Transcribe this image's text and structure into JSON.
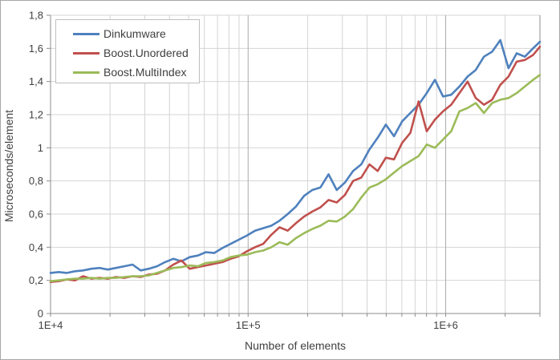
{
  "window": {
    "background": "#ffffff",
    "border_color": "#a6a6a6"
  },
  "chart_data": {
    "type": "line",
    "title": "",
    "xlabel": "Number of elements",
    "ylabel": "Microseconds/element",
    "x_scale": "log",
    "x_range": [
      10000,
      3000000
    ],
    "y_range": [
      0,
      1.8
    ],
    "grid": true,
    "legend_position": "top-left",
    "style": {
      "minor_grid_color": "#d4d4d4",
      "major_grid_color": "#ababab",
      "axis_color": "#8c8c8c",
      "tick_label_color": "#404040"
    },
    "y_ticks": [
      {
        "value": 0,
        "label": "0"
      },
      {
        "value": 0.2,
        "label": "0,2"
      },
      {
        "value": 0.4,
        "label": "0,4"
      },
      {
        "value": 0.6,
        "label": "0,6"
      },
      {
        "value": 0.8,
        "label": "0,8"
      },
      {
        "value": 1.0,
        "label": "1"
      },
      {
        "value": 1.2,
        "label": "1,2"
      },
      {
        "value": 1.4,
        "label": "1,4"
      },
      {
        "value": 1.6,
        "label": "1,6"
      },
      {
        "value": 1.8,
        "label": "1,8"
      }
    ],
    "x_major_ticks": [
      {
        "value": 10000,
        "label": "1E+4"
      },
      {
        "value": 100000,
        "label": "1E+5"
      },
      {
        "value": 1000000,
        "label": "1E+6"
      }
    ],
    "x": [
      10000,
      11000,
      12100,
      13300,
      14600,
      16100,
      17700,
      19500,
      21400,
      23600,
      26000,
      28600,
      31400,
      34600,
      38000,
      41800,
      46000,
      50600,
      55700,
      61200,
      67300,
      74100,
      81500,
      89600,
      98500,
      108400,
      119200,
      131100,
      144200,
      158600,
      174500,
      191900,
      211100,
      232200,
      255400,
      281000,
      309100,
      340000,
      374000,
      411400,
      452500,
      497800,
      547500,
      602300,
      662500,
      728800,
      801600,
      881800,
      970000,
      1067000,
      1173600,
      1291000,
      1420000,
      1562000,
      1718300,
      1890200,
      2079200,
      2287100,
      2515900,
      2767400,
      3000000
    ],
    "series": [
      {
        "name": "Dinkumware",
        "color": "#4F81BD",
        "values": [
          0.245,
          0.25,
          0.245,
          0.255,
          0.26,
          0.27,
          0.275,
          0.265,
          0.275,
          0.285,
          0.295,
          0.26,
          0.27,
          0.285,
          0.31,
          0.33,
          0.315,
          0.34,
          0.35,
          0.37,
          0.365,
          0.395,
          0.42,
          0.445,
          0.47,
          0.5,
          0.515,
          0.53,
          0.56,
          0.6,
          0.645,
          0.71,
          0.745,
          0.76,
          0.84,
          0.745,
          0.79,
          0.86,
          0.9,
          0.99,
          1.06,
          1.14,
          1.07,
          1.16,
          1.21,
          1.26,
          1.33,
          1.41,
          1.31,
          1.32,
          1.37,
          1.43,
          1.47,
          1.55,
          1.58,
          1.65,
          1.48,
          1.57,
          1.55,
          1.6,
          1.64
        ]
      },
      {
        "name": "Boost.Unordered",
        "color": "#C0504D",
        "values": [
          0.19,
          0.195,
          0.205,
          0.2,
          0.225,
          0.21,
          0.215,
          0.21,
          0.22,
          0.215,
          0.225,
          0.22,
          0.235,
          0.24,
          0.26,
          0.295,
          0.32,
          0.27,
          0.28,
          0.29,
          0.3,
          0.31,
          0.33,
          0.345,
          0.375,
          0.4,
          0.42,
          0.475,
          0.52,
          0.5,
          0.545,
          0.585,
          0.615,
          0.64,
          0.685,
          0.67,
          0.715,
          0.8,
          0.82,
          0.9,
          0.86,
          0.94,
          0.93,
          1.03,
          1.09,
          1.28,
          1.1,
          1.17,
          1.22,
          1.26,
          1.33,
          1.4,
          1.3,
          1.26,
          1.29,
          1.38,
          1.43,
          1.52,
          1.53,
          1.56,
          1.61
        ]
      },
      {
        "name": "Boost.MultiIndex",
        "color": "#9BBB59",
        "values": [
          0.195,
          0.2,
          0.205,
          0.21,
          0.21,
          0.215,
          0.21,
          0.215,
          0.215,
          0.22,
          0.225,
          0.225,
          0.23,
          0.245,
          0.26,
          0.275,
          0.28,
          0.29,
          0.285,
          0.305,
          0.31,
          0.32,
          0.34,
          0.35,
          0.355,
          0.37,
          0.38,
          0.4,
          0.43,
          0.415,
          0.455,
          0.485,
          0.51,
          0.53,
          0.56,
          0.555,
          0.585,
          0.63,
          0.7,
          0.76,
          0.78,
          0.81,
          0.85,
          0.89,
          0.92,
          0.95,
          1.02,
          1.0,
          1.05,
          1.1,
          1.22,
          1.24,
          1.27,
          1.21,
          1.27,
          1.29,
          1.3,
          1.33,
          1.37,
          1.41,
          1.44
        ]
      }
    ]
  }
}
